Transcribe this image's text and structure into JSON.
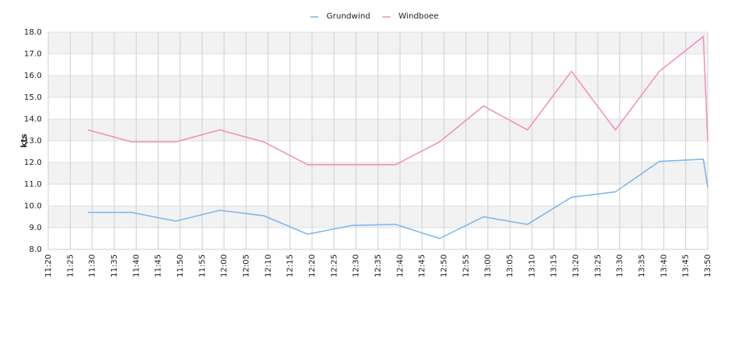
{
  "chart_data": {
    "type": "line",
    "y_label": "kts",
    "x": [
      "11:29",
      "11:39",
      "11:49",
      "11:59",
      "12:09",
      "12:19",
      "12:29",
      "12:39",
      "12:49",
      "12:59",
      "13:09",
      "13:19",
      "13:29",
      "13:39",
      "13:49",
      "13:50"
    ],
    "series": [
      {
        "name": "Grundwind",
        "color": "#7cb5ec",
        "values": [
          9.7,
          9.7,
          9.3,
          9.8,
          9.55,
          8.7,
          9.1,
          9.15,
          8.5,
          9.5,
          9.15,
          10.4,
          10.65,
          12.05,
          12.15,
          10.85
        ]
      },
      {
        "name": "Windboee",
        "color": "#f08fc0",
        "values": [
          13.5,
          12.95,
          12.95,
          13.5,
          12.95,
          11.9,
          11.9,
          11.9,
          12.95,
          14.6,
          13.5,
          16.2,
          13.5,
          16.2,
          17.8,
          12.95
        ]
      }
    ],
    "xlim": [
      "11:20",
      "13:50"
    ],
    "xticks": [
      "11:20",
      "11:25",
      "11:30",
      "11:35",
      "11:40",
      "11:45",
      "11:50",
      "11:55",
      "12:00",
      "12:05",
      "12:10",
      "12:15",
      "12:20",
      "12:25",
      "12:30",
      "12:35",
      "12:40",
      "12:45",
      "12:50",
      "12:55",
      "13:00",
      "13:05",
      "13:10",
      "13:15",
      "13:20",
      "13:25",
      "13:30",
      "13:35",
      "13:40",
      "13:45",
      "13:50"
    ],
    "ylim": [
      8,
      18
    ],
    "yticks": [
      {
        "value": 8,
        "label": "8.0"
      },
      {
        "value": 9,
        "label": "9.0"
      },
      {
        "value": 10,
        "label": "10.0"
      },
      {
        "value": 11,
        "label": "11.0"
      },
      {
        "value": 12,
        "label": "12.0"
      },
      {
        "value": 13,
        "label": "13.0"
      },
      {
        "value": 14,
        "label": "14.0"
      },
      {
        "value": 15,
        "label": "15.0"
      },
      {
        "value": 16,
        "label": "16.0"
      },
      {
        "value": 17,
        "label": "17.0"
      },
      {
        "value": 18,
        "label": "18.0"
      }
    ],
    "grid": true,
    "legend": "top"
  }
}
